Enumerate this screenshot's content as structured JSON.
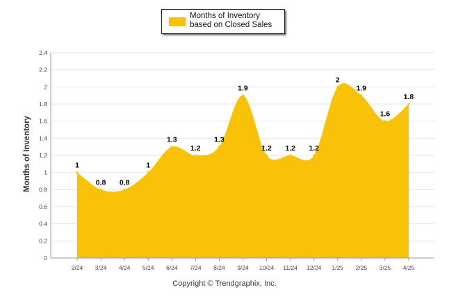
{
  "chart_data": {
    "type": "area",
    "title": "",
    "xlabel": "",
    "ylabel": "Months of Inventory",
    "categories": [
      "2/24",
      "3/24",
      "4/24",
      "5/24",
      "6/24",
      "7/24",
      "8/24",
      "9/24",
      "10/24",
      "11/24",
      "12/24",
      "1/25",
      "2/25",
      "3/25",
      "4/25"
    ],
    "series": [
      {
        "name": "Months of Inventory based on Closed Sales",
        "values": [
          1,
          0.8,
          0.8,
          1,
          1.3,
          1.2,
          1.3,
          1.9,
          1.2,
          1.2,
          1.2,
          2,
          1.9,
          1.6,
          1.8
        ],
        "data_labels": [
          "1",
          "0.8",
          "0.8",
          "1",
          "1.3",
          "1.2",
          "1.3",
          "1.9",
          "1.2",
          "1.2",
          "1.2",
          "2",
          "1.9",
          "1.6",
          "1.8"
        ],
        "color": "#f7c208"
      }
    ],
    "ylim": [
      0,
      2.4
    ],
    "yticks": [
      "0",
      "0.2",
      "0.4",
      "0.6",
      "0.8",
      "1",
      "1.2",
      "1.4",
      "1.6",
      "1.8",
      "2",
      "2.2",
      "2.4"
    ],
    "grid": true,
    "legend": "top-center",
    "copyright": "Copyright © Trendgraphix, Inc."
  }
}
